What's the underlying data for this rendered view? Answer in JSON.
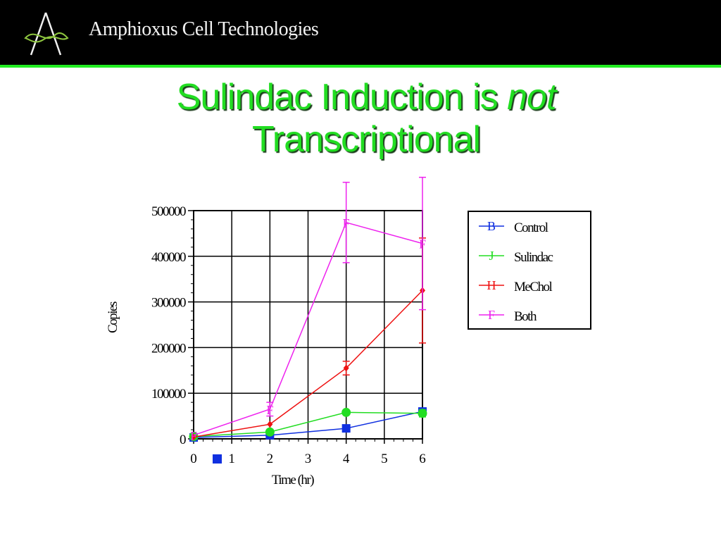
{
  "header": {
    "company": "Amphioxus Cell Technologies",
    "logo_icon": "amphioxus-logo-icon",
    "background": "#000000",
    "rule_color": "#22ee22"
  },
  "slide": {
    "title_part1": "Sulindac Induction is ",
    "title_emphasis": "not",
    "title_part2": "Transcriptional",
    "title_color": "#22dd22"
  },
  "chart_data": {
    "type": "line",
    "xlabel": "Time (hr)",
    "ylabel": "Copies",
    "xlim": [
      0,
      6
    ],
    "ylim": [
      0,
      500000
    ],
    "x_ticks": [
      "0",
      "1",
      "2",
      "3",
      "4",
      "5",
      "6"
    ],
    "y_ticks": [
      "0",
      "100000",
      "200000",
      "300000",
      "400000",
      "500000"
    ],
    "grid": true,
    "legend_position": "right",
    "series": [
      {
        "name": "Control",
        "marker_label": "B",
        "color": "#1030e0",
        "x": [
          0,
          2,
          4,
          6
        ],
        "y": [
          3000,
          8000,
          23000,
          60000
        ],
        "err": [
          0,
          0,
          0,
          0
        ]
      },
      {
        "name": "Sulindac",
        "marker_label": "J",
        "color": "#22dd22",
        "x": [
          0,
          2,
          4,
          6
        ],
        "y": [
          5000,
          15000,
          58000,
          56000
        ],
        "err": [
          0,
          0,
          0,
          8000
        ]
      },
      {
        "name": "MeChol",
        "marker_label": "H",
        "color": "#ee1111",
        "x": [
          0,
          2,
          4,
          6
        ],
        "y": [
          4000,
          32000,
          155000,
          325000
        ],
        "err": [
          0,
          0,
          15000,
          115000
        ]
      },
      {
        "name": "Both",
        "marker_label": "F",
        "color": "#ee22ee",
        "x": [
          0,
          2,
          4,
          6
        ],
        "y": [
          8000,
          65000,
          474000,
          428000
        ],
        "err": [
          0,
          15000,
          88000,
          145000
        ]
      }
    ]
  }
}
